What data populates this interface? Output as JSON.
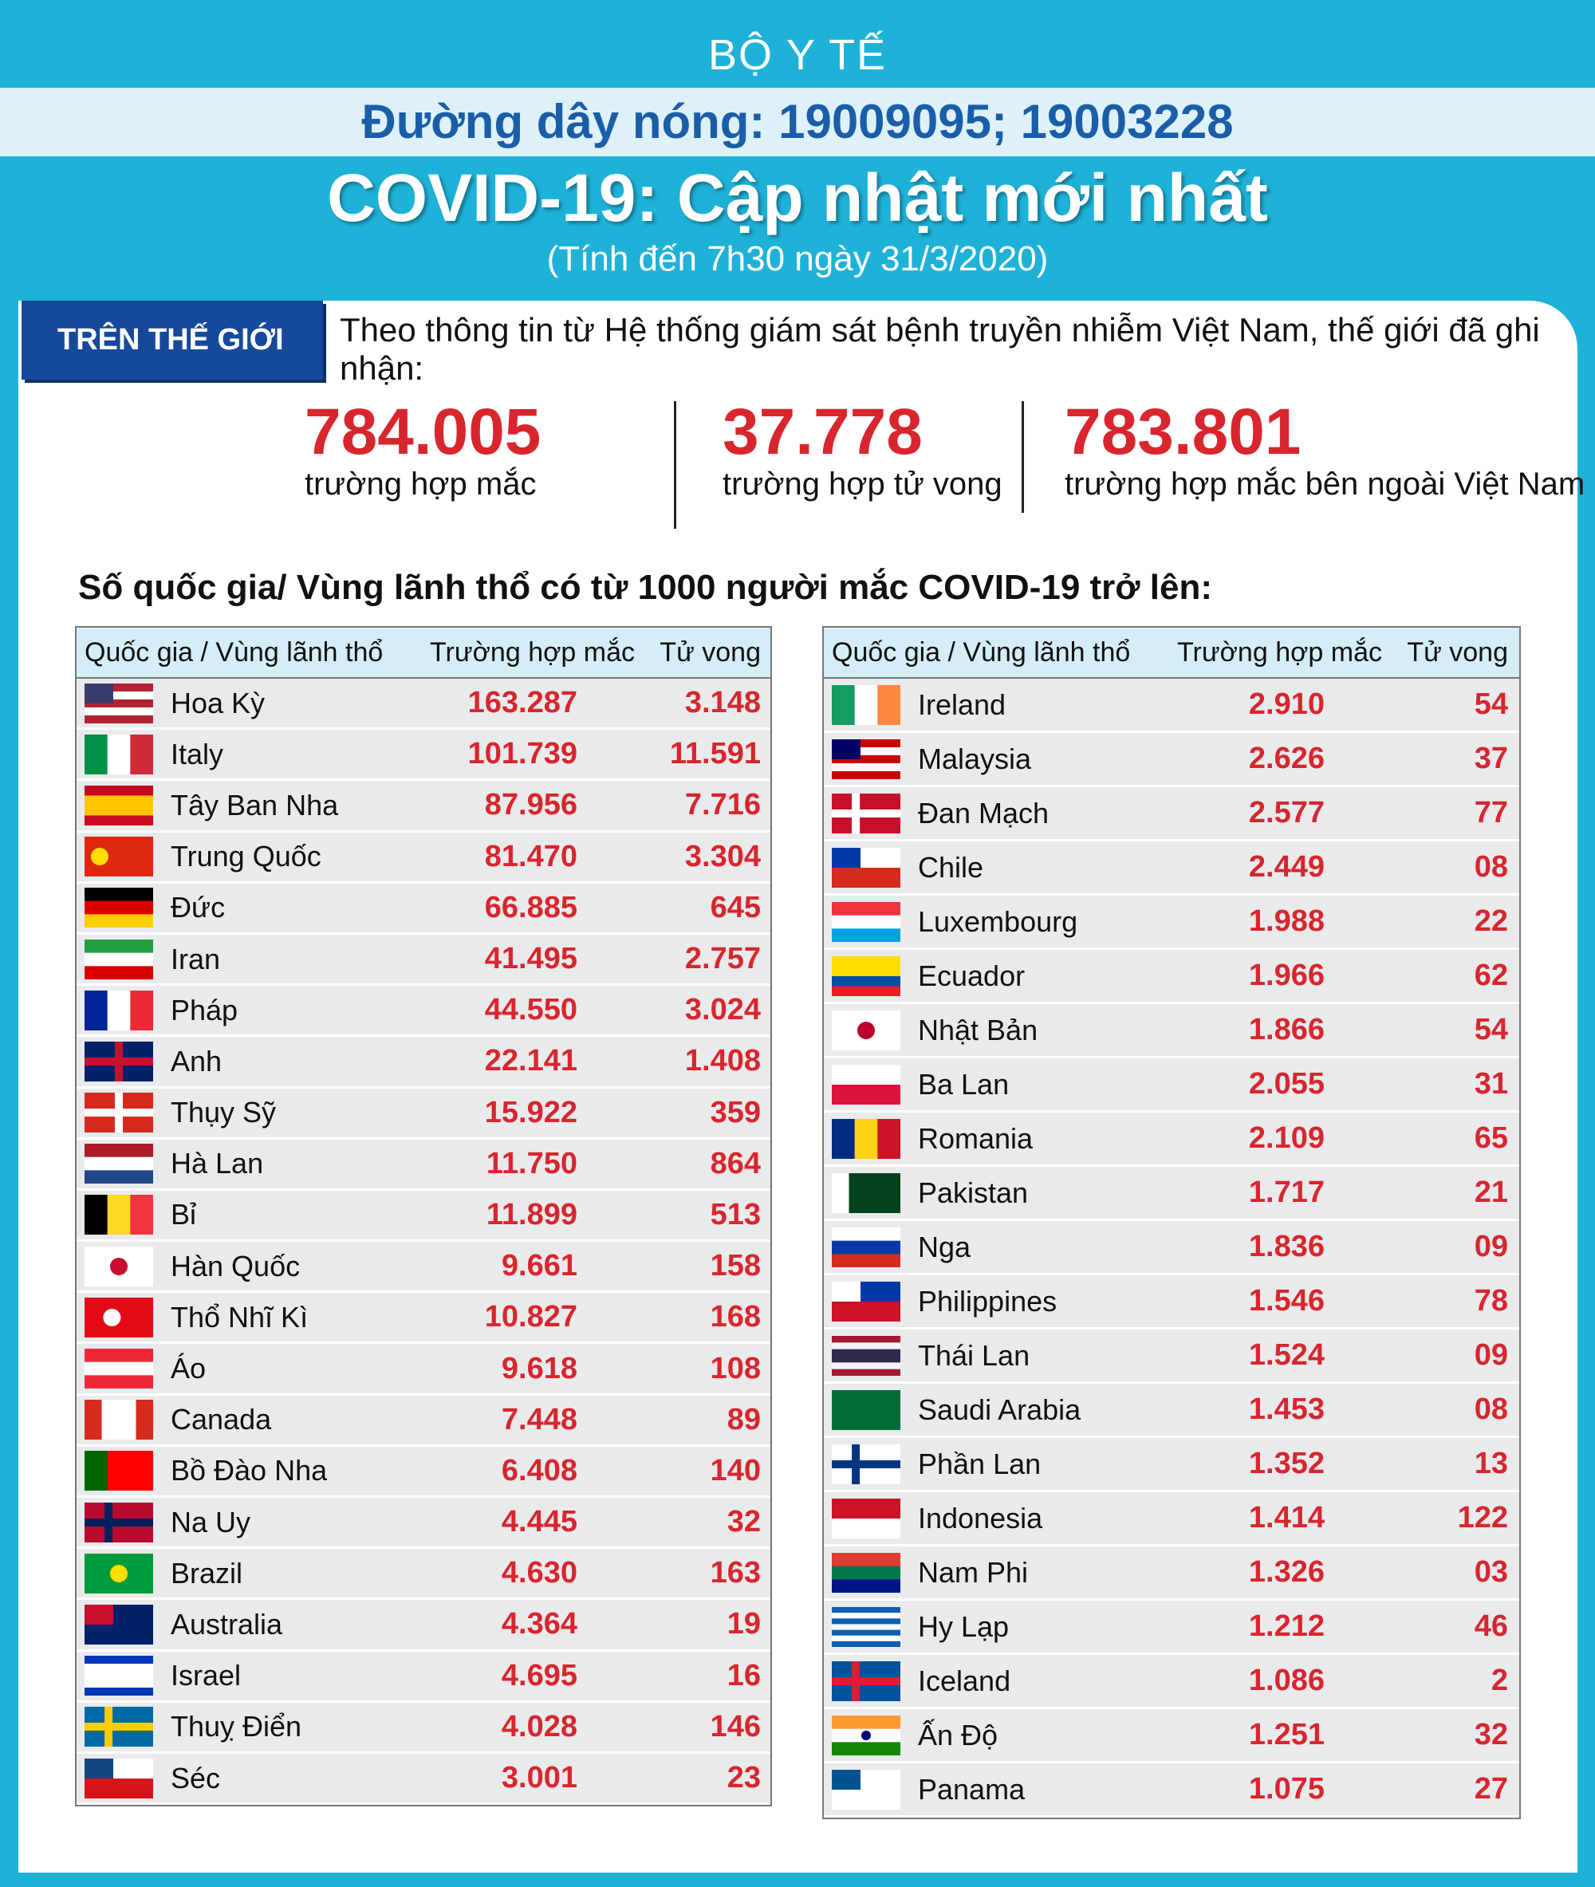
{
  "header": {
    "org": "BỘ Y TẾ",
    "hotline": "Đường dây nóng: 19009095; 19003228",
    "title": "COVID-19: Cập nhật mới nhất",
    "subtitle": "(Tính đến 7h30 ngày 31/3/2020)"
  },
  "section": {
    "label": "TRÊN THẾ GIỚI",
    "intro": "Theo thông tin từ Hệ thống giám sát bệnh truyền nhiễm Việt Nam, thế giới đã ghi nhận:"
  },
  "stats": [
    {
      "value": "784.005",
      "label": "trường hợp mắc"
    },
    {
      "value": "37.778",
      "label": "trường hợp tử vong"
    },
    {
      "value": "783.801",
      "label": "trường hợp  mắc bên ngoài Việt Nam"
    }
  ],
  "table_title": "Số quốc gia/ Vùng lãnh thổ có từ 1000 người  mắc COVID-19 trở lên:",
  "tables": [
    {
      "headers": [
        "Quốc gia / Vùng lãnh thổ",
        "Trường hợp mắc",
        "Tử vong"
      ],
      "rows": [
        [
          "Hoa Kỳ",
          "163.287",
          "3.148"
        ],
        [
          "Italy",
          "101.739",
          "11.591"
        ],
        [
          "Tây Ban Nha",
          "87.956",
          "7.716"
        ],
        [
          "Trung Quốc",
          "81.470",
          "3.304"
        ],
        [
          "Đức",
          "66.885",
          "645"
        ],
        [
          "Iran",
          "41.495",
          "2.757"
        ],
        [
          "Pháp",
          "44.550",
          "3.024"
        ],
        [
          "Anh",
          "22.141",
          "1.408"
        ],
        [
          "Thụy Sỹ",
          "15.922",
          "359"
        ],
        [
          "Hà Lan",
          "11.750",
          "864"
        ],
        [
          "Bỉ",
          "11.899",
          "513"
        ],
        [
          "Hàn Quốc",
          "9.661",
          "158"
        ],
        [
          "Thổ Nhĩ Kì",
          "10.827",
          "168"
        ],
        [
          "Áo",
          "9.618",
          "108"
        ],
        [
          "Canada",
          "7.448",
          "89"
        ],
        [
          "Bồ Đào Nha",
          "6.408",
          "140"
        ],
        [
          "Na Uy",
          "4.445",
          "32"
        ],
        [
          "Brazil",
          "4.630",
          "163"
        ],
        [
          "Australia",
          "4.364",
          "19"
        ],
        [
          "Israel",
          "4.695",
          "16"
        ],
        [
          "Thuỵ Điển",
          "4.028",
          "146"
        ],
        [
          "Séc",
          "3.001",
          "23"
        ]
      ]
    },
    {
      "headers": [
        "Quốc gia / Vùng lãnh thổ",
        "Trường hợp mắc",
        "Tử vong"
      ],
      "rows": [
        [
          "Ireland",
          "2.910",
          "54"
        ],
        [
          "Malaysia",
          "2.626",
          "37"
        ],
        [
          "Đan Mạch",
          "2.577",
          "77"
        ],
        [
          "Chile",
          "2.449",
          "08"
        ],
        [
          "Luxembourg",
          "1.988",
          "22"
        ],
        [
          "Ecuador",
          "1.966",
          "62"
        ],
        [
          "Nhật Bản",
          "1.866",
          "54"
        ],
        [
          "Ba Lan",
          "2.055",
          "31"
        ],
        [
          "Romania",
          "2.109",
          "65"
        ],
        [
          "Pakistan",
          "1.717",
          "21"
        ],
        [
          "Nga",
          "1.836",
          "09"
        ],
        [
          "Philippines",
          "1.546",
          "78"
        ],
        [
          "Thái Lan",
          "1.524",
          "09"
        ],
        [
          "Saudi Arabia",
          "1.453",
          "08"
        ],
        [
          "Phần Lan",
          "1.352",
          "13"
        ],
        [
          "Indonesia",
          "1.414",
          "122"
        ],
        [
          "Nam Phi",
          "1.326",
          "03"
        ],
        [
          "Hy Lạp",
          "1.212",
          "46"
        ],
        [
          "Iceland",
          "1.086",
          "2"
        ],
        [
          "Ấn Độ",
          "1.251",
          "32"
        ],
        [
          "Panama",
          "1.075",
          "27"
        ]
      ]
    }
  ]
}
